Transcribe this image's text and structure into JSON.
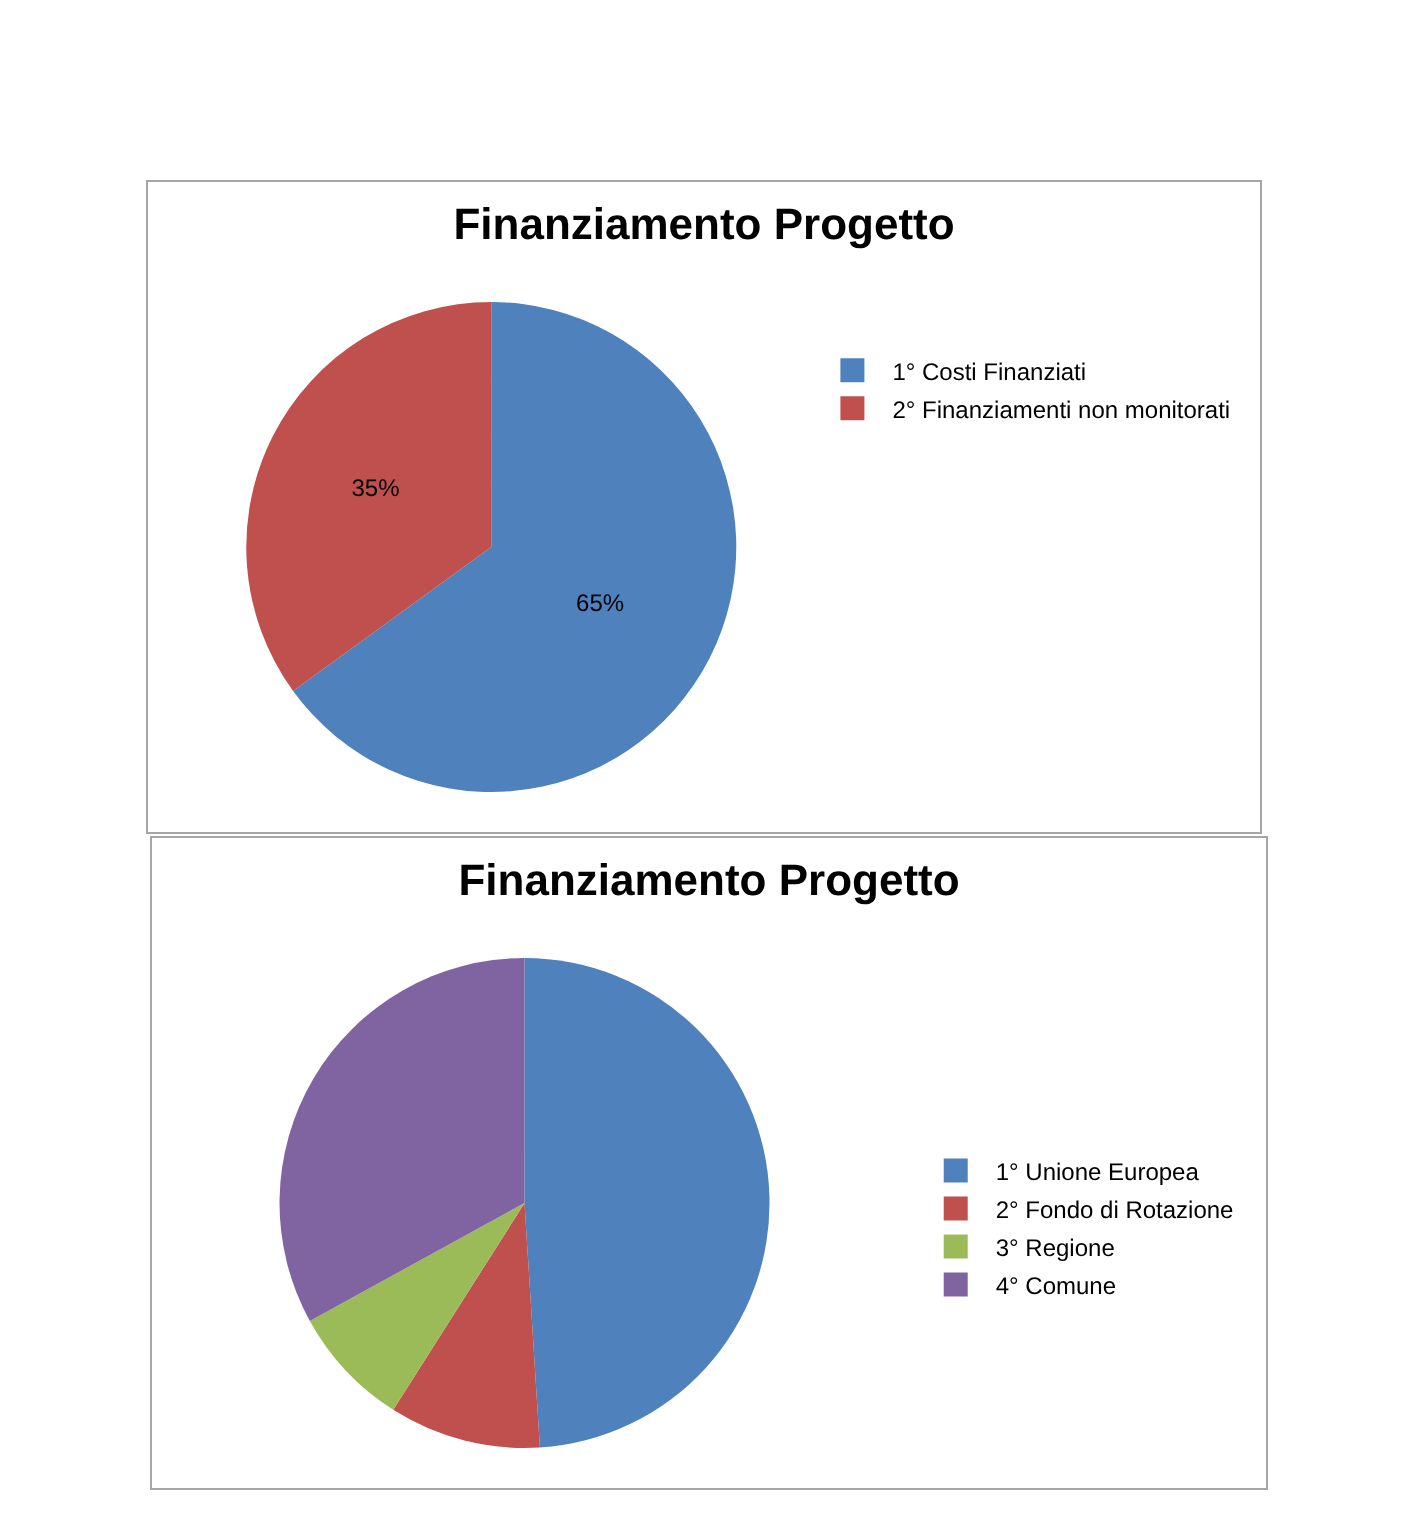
{
  "chart_data": [
    {
      "type": "pie",
      "title": "Finanziamento Progetto",
      "categories": [
        "1° Costi Finanziati",
        "2° Finanziamenti non monitorati"
      ],
      "values": [
        65,
        35
      ],
      "colors": [
        "#4f81bd",
        "#c0504d"
      ],
      "value_labels": [
        "65%",
        "35%"
      ],
      "legend": "top right"
    },
    {
      "type": "pie",
      "title": "Finanziamento Progetto",
      "categories": [
        "1° Unione Europea",
        "2° Fondo di Rotazione",
        "3° Regione",
        "4° Comune"
      ],
      "values": [
        49,
        10,
        8,
        33
      ],
      "colors": [
        "#4f81bd",
        "#c0504d",
        "#9bbb59",
        "#8064a2"
      ],
      "legend": "right"
    }
  ]
}
